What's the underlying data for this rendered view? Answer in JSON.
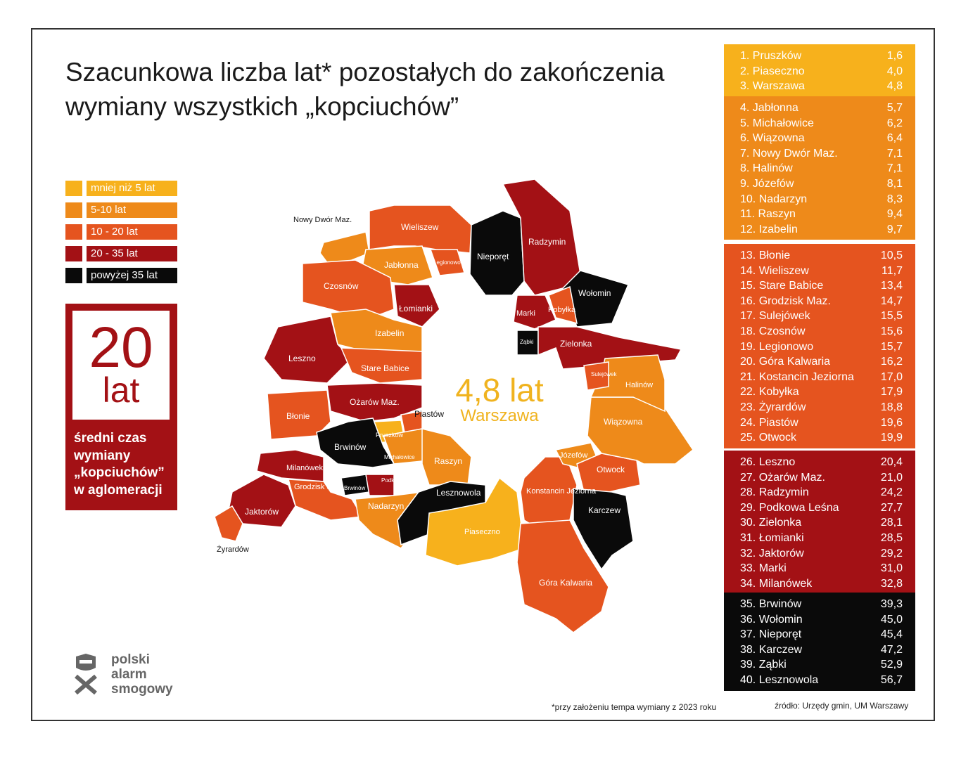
{
  "title": "Szacunkowa liczba lat* pozostałych do zakończenia wymiany wszystkich „kopciuchów”",
  "colors": {
    "lt5": "#f7b11c",
    "5to10": "#ee8a1a",
    "10to20": "#e5541f",
    "20to35": "#a31115",
    "gt35": "#0a0a0a"
  },
  "legend": [
    {
      "label": "mniej niż 5 lat",
      "color": "#f7b11c"
    },
    {
      "label": "5-10 lat",
      "color": "#ee8a1a"
    },
    {
      "label": "10 - 20 lat",
      "color": "#e5541f"
    },
    {
      "label": "20 - 35 lat",
      "color": "#a31115"
    },
    {
      "label": "powyżej 35 lat",
      "color": "#0a0a0a"
    }
  ],
  "average": {
    "value": "20",
    "unit": "lat",
    "caption_lines": [
      "średni czas",
      "wymiany",
      "„kopciuchów”",
      "w aglomeracji"
    ]
  },
  "warsaw": {
    "value": "4,8 lat",
    "name": "Warszawa"
  },
  "ranking": [
    {
      "color": "#f7b11c",
      "rows": [
        [
          "1. Pruszków",
          "1,6"
        ],
        [
          "2. Piaseczno",
          "4,0"
        ],
        [
          "3. Warszawa",
          "4,8"
        ]
      ]
    },
    {
      "color": "#ee8a1a",
      "rows": [
        [
          "4. Jabłonna",
          "5,7"
        ],
        [
          "5. Michałowice",
          "6,2"
        ],
        [
          "6. Wiązowna",
          "6,4"
        ],
        [
          "7. Nowy Dwór Maz.",
          "7,1"
        ],
        [
          "8. Halinów",
          "7,1"
        ],
        [
          "9. Józefów",
          "8,1"
        ],
        [
          "10. Nadarzyn",
          "8,3"
        ],
        [
          "11. Raszyn",
          "9,4"
        ],
        [
          "12. Izabelin",
          "9,7"
        ]
      ]
    },
    {
      "color": "#e5541f",
      "rows": [
        [
          "13. Błonie",
          "10,5"
        ],
        [
          "14. Wieliszew",
          "11,7"
        ],
        [
          "15. Stare Babice",
          "13,4"
        ],
        [
          "16. Grodzisk Maz.",
          "14,7"
        ],
        [
          "17. Sulejówek",
          "15,5"
        ],
        [
          "18. Czosnów",
          "15,6"
        ],
        [
          "19. Legionowo",
          "15,7"
        ],
        [
          "20. Góra Kalwaria",
          "16,2"
        ],
        [
          "21. Kostancin Jeziorna",
          "17,0"
        ],
        [
          "22. Kobyłka",
          "17,9"
        ],
        [
          "23. Żyrardów",
          "18,8"
        ],
        [
          "24. Piastów",
          "19,6"
        ],
        [
          "25. Otwock",
          "19,9"
        ]
      ]
    },
    {
      "color": "#a31115",
      "rows": [
        [
          "26. Leszno",
          "20,4"
        ],
        [
          "27. Ożarów Maz.",
          "21,0"
        ],
        [
          "28. Radzymin",
          "24,2"
        ],
        [
          "29. Podkowa Leśna",
          "27,7"
        ],
        [
          "30. Zielonka",
          "28,1"
        ],
        [
          "31. Łomianki",
          "28,5"
        ],
        [
          "32. Jaktorów",
          "29,2"
        ],
        [
          "33. Marki",
          "31,0"
        ],
        [
          "34. Milanówek",
          "32,8"
        ]
      ]
    },
    {
      "color": "#0a0a0a",
      "rows": [
        [
          "35. Brwinów",
          "39,3"
        ],
        [
          "36. Wołomin",
          "45,0"
        ],
        [
          "37. Nieporęt",
          "45,4"
        ],
        [
          "38. Karczew",
          "47,2"
        ],
        [
          "39. Ząbki",
          "52,9"
        ],
        [
          "40. Lesznowola",
          "56,7"
        ]
      ]
    }
  ],
  "map": {
    "areas": [
      {
        "name": "Wieliszew",
        "cat": "10to20"
      },
      {
        "name": "Nowy Dwór Maz.",
        "cat": "5to10"
      },
      {
        "name": "Jabłonna",
        "cat": "5to10"
      },
      {
        "name": "Legionowo",
        "cat": "10to20"
      },
      {
        "name": "Nieporęt",
        "cat": "gt35"
      },
      {
        "name": "Radzymin",
        "cat": "20to35"
      },
      {
        "name": "Wołomin",
        "cat": "gt35"
      },
      {
        "name": "Kobyłka",
        "cat": "10to20"
      },
      {
        "name": "Marki",
        "cat": "20to35"
      },
      {
        "name": "Ząbki",
        "cat": "gt35"
      },
      {
        "name": "Zielonka",
        "cat": "20to35"
      },
      {
        "name": "Czosnów",
        "cat": "10to20"
      },
      {
        "name": "Łomianki",
        "cat": "20to35"
      },
      {
        "name": "Izabelin",
        "cat": "5to10"
      },
      {
        "name": "Leszno",
        "cat": "20to35"
      },
      {
        "name": "Stare Babice",
        "cat": "10to20"
      },
      {
        "name": "Ożarów Maz.",
        "cat": "20to35"
      },
      {
        "name": "Błonie",
        "cat": "10to20"
      },
      {
        "name": "Piastów",
        "cat": "10to20"
      },
      {
        "name": "Pruszków",
        "cat": "lt5"
      },
      {
        "name": "Brwinów",
        "cat": "gt35"
      },
      {
        "name": "Michałowice",
        "cat": "5to10"
      },
      {
        "name": "Raszyn",
        "cat": "5to10"
      },
      {
        "name": "Milanówek",
        "cat": "20to35"
      },
      {
        "name": "Grodzisk Maz.",
        "cat": "10to20"
      },
      {
        "name": "Brwinów",
        "cat": "gt35"
      },
      {
        "name": "Podkowa Leśna",
        "cat": "20to35"
      },
      {
        "name": "Jaktorów",
        "cat": "20to35"
      },
      {
        "name": "Żyrardów",
        "cat": "10to20"
      },
      {
        "name": "Nadarzyn",
        "cat": "5to10"
      },
      {
        "name": "Lesznowola",
        "cat": "gt35"
      },
      {
        "name": "Piaseczno",
        "cat": "lt5"
      },
      {
        "name": "Konstancin Jeziorna",
        "cat": "10to20"
      },
      {
        "name": "Józefów",
        "cat": "5to10"
      },
      {
        "name": "Otwock",
        "cat": "10to20"
      },
      {
        "name": "Karczew",
        "cat": "gt35"
      },
      {
        "name": "Góra Kalwaria",
        "cat": "10to20"
      },
      {
        "name": "Wiązowna",
        "cat": "5to10"
      },
      {
        "name": "Halinów",
        "cat": "5to10"
      },
      {
        "name": "Sulejówek",
        "cat": "10to20"
      }
    ],
    "labels": [
      "Wieliszew",
      "Nowy Dwór Maz.",
      "Jabłonna",
      "Legionowo",
      "Nieporęt",
      "Radzymin",
      "Wołomin",
      "Kobyłka",
      "Marki",
      "Ząbki",
      "Zielonka",
      "Czosnów",
      "Łomianki",
      "Izabelin",
      "Leszno",
      "Stare Babice",
      "Ożarów Maz.",
      "Błonie",
      "Piastów",
      "Pruszków",
      "Brwinów",
      "Michałowice",
      "Raszyn",
      "Milanówek",
      "Grodzisk Maz.",
      "Brwinów",
      "Podkowa Leśna",
      "Jaktorów",
      "Żyrardów",
      "Nadarzyn",
      "Lesznowola",
      "Piaseczno",
      "Konstancin Jeziorna",
      "Józefów",
      "Otwock",
      "Karczew",
      "Góra Kalwaria",
      "Wiązowna",
      "Halinów",
      "Sulejówek"
    ]
  },
  "footnote": "*przy założeniu tempa wymiany z 2023 roku",
  "source": "źródło: Urzędy gmin, UM Warszawy",
  "logo": {
    "lines": [
      "polski",
      "alarm",
      "smogowy"
    ]
  }
}
